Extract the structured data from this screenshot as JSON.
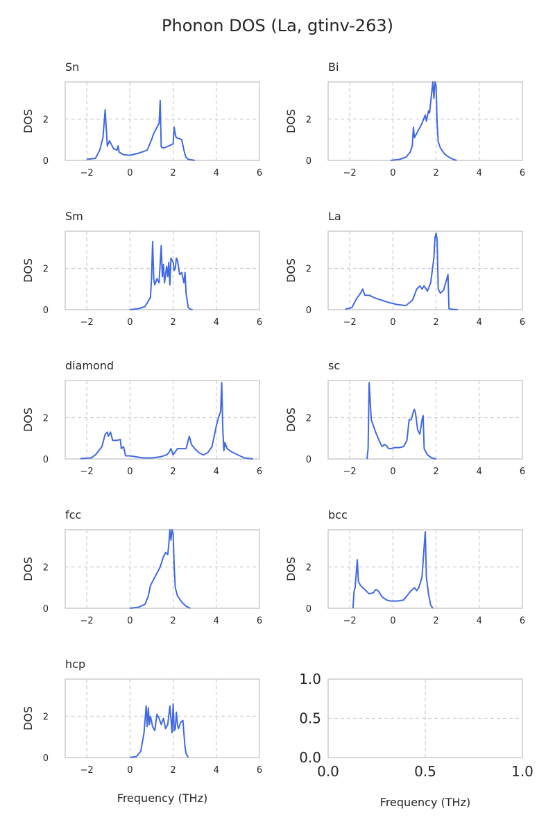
{
  "title": "Phonon DOS (La, gtinv-263)",
  "colors": {
    "line": "#4169e1",
    "grid": "#cccccc",
    "frame": "#cccccc",
    "text": "#262626"
  },
  "chart_data": [
    {
      "type": "line",
      "panel_title": "Sn",
      "xlabel": "",
      "ylabel": "DOS",
      "xlim": [
        -3,
        6
      ],
      "ylim": [
        0,
        3.8
      ],
      "xticks": [
        "-2",
        "0",
        "2",
        "4",
        "6"
      ],
      "yticks": [
        "0",
        "2"
      ],
      "grid": true,
      "series": [
        {
          "x": [
            -2.0,
            -1.6,
            -1.4,
            -1.25,
            -1.15,
            -1.1,
            -1.05,
            -0.95,
            -0.85,
            -0.75,
            -0.6,
            -0.55,
            -0.5,
            -0.3,
            0.0,
            0.2,
            0.4,
            0.6,
            0.8,
            1.0,
            1.1,
            1.25,
            1.35,
            1.4,
            1.45,
            1.55,
            1.8,
            2.0,
            2.05,
            2.1,
            2.15,
            2.3,
            2.4,
            2.5,
            2.55,
            2.6,
            2.7,
            2.9,
            3.0
          ],
          "y": [
            0.05,
            0.1,
            0.5,
            1.1,
            2.45,
            1.6,
            0.7,
            0.95,
            0.75,
            0.55,
            0.5,
            0.7,
            0.4,
            0.28,
            0.25,
            0.3,
            0.35,
            0.42,
            0.5,
            1.0,
            1.3,
            1.6,
            1.8,
            2.9,
            0.65,
            0.6,
            0.7,
            0.8,
            1.6,
            1.25,
            1.1,
            1.05,
            1.0,
            0.5,
            0.3,
            0.15,
            0.05,
            0.02,
            0.0
          ]
        }
      ]
    },
    {
      "type": "line",
      "panel_title": "Bi",
      "xlabel": "",
      "ylabel": "DOS",
      "xlim": [
        -3,
        6
      ],
      "ylim": [
        0,
        3.8
      ],
      "xticks": [
        "-2",
        "0",
        "2",
        "4",
        "6"
      ],
      "yticks": [
        "0",
        "2"
      ],
      "grid": true,
      "series": [
        {
          "x": [
            -0.1,
            0.3,
            0.6,
            0.8,
            0.9,
            0.95,
            1.0,
            1.2,
            1.35,
            1.5,
            1.55,
            1.65,
            1.7,
            1.8,
            1.85,
            1.9,
            1.95,
            2.0,
            2.05,
            2.1,
            2.2,
            2.4,
            2.6,
            2.8,
            2.95
          ],
          "y": [
            0.0,
            0.05,
            0.15,
            0.4,
            0.7,
            1.6,
            1.1,
            1.5,
            1.8,
            2.2,
            1.9,
            2.4,
            2.3,
            3.3,
            3.8,
            3.0,
            3.8,
            3.6,
            1.8,
            0.9,
            0.6,
            0.3,
            0.15,
            0.05,
            0.0
          ]
        }
      ]
    },
    {
      "type": "line",
      "panel_title": "Sm",
      "xlabel": "",
      "ylabel": "DOS",
      "xlim": [
        -3,
        6
      ],
      "ylim": [
        0,
        3.8
      ],
      "xticks": [
        "-2",
        "0",
        "2",
        "4",
        "6"
      ],
      "yticks": [
        "0",
        "2"
      ],
      "grid": true,
      "series": [
        {
          "x": [
            0.0,
            0.4,
            0.7,
            0.95,
            1.0,
            1.05,
            1.1,
            1.15,
            1.25,
            1.35,
            1.45,
            1.5,
            1.55,
            1.6,
            1.7,
            1.75,
            1.8,
            1.85,
            1.9,
            2.0,
            2.05,
            2.1,
            2.15,
            2.2,
            2.3,
            2.4,
            2.5,
            2.55,
            2.6,
            2.7,
            2.8,
            2.9
          ],
          "y": [
            0.0,
            0.05,
            0.15,
            0.6,
            1.5,
            3.3,
            1.5,
            1.2,
            1.5,
            1.3,
            3.1,
            1.6,
            2.2,
            1.3,
            2.1,
            1.6,
            2.3,
            1.2,
            2.5,
            2.3,
            1.9,
            2.0,
            2.5,
            2.4,
            1.7,
            1.8,
            1.3,
            1.8,
            0.8,
            0.1,
            0.02,
            0.0
          ]
        }
      ]
    },
    {
      "type": "line",
      "panel_title": "La",
      "xlabel": "",
      "ylabel": "DOS",
      "xlim": [
        -3,
        6
      ],
      "ylim": [
        0,
        3.8
      ],
      "xticks": [
        "-2",
        "0",
        "2",
        "4",
        "6"
      ],
      "yticks": [
        "0",
        "2"
      ],
      "grid": true,
      "series": [
        {
          "x": [
            -2.2,
            -1.9,
            -1.7,
            -1.5,
            -1.4,
            -1.3,
            -1.1,
            -0.8,
            -0.5,
            -0.2,
            0.2,
            0.6,
            0.9,
            1.0,
            1.1,
            1.25,
            1.35,
            1.45,
            1.6,
            1.75,
            1.9,
            1.95,
            2.0,
            2.05,
            2.1,
            2.2,
            2.35,
            2.5,
            2.55,
            2.6,
            2.7,
            3.0
          ],
          "y": [
            0.02,
            0.1,
            0.5,
            0.8,
            1.0,
            0.7,
            0.7,
            0.55,
            0.45,
            0.35,
            0.25,
            0.2,
            0.45,
            0.7,
            1.0,
            1.15,
            1.0,
            1.15,
            0.9,
            1.3,
            2.5,
            3.5,
            3.7,
            3.4,
            1.0,
            0.8,
            0.95,
            1.5,
            1.7,
            0.05,
            0.02,
            0.0
          ]
        }
      ]
    },
    {
      "type": "line",
      "panel_title": "diamond",
      "xlabel": "",
      "ylabel": "DOS",
      "xlim": [
        -3,
        6
      ],
      "ylim": [
        0,
        3.8
      ],
      "xticks": [
        "-2",
        "0",
        "2",
        "4",
        "6"
      ],
      "yticks": [
        "0",
        "2"
      ],
      "grid": true,
      "series": [
        {
          "x": [
            -2.3,
            -1.8,
            -1.6,
            -1.3,
            -1.15,
            -1.05,
            -1.0,
            -0.9,
            -0.8,
            -0.6,
            -0.45,
            -0.4,
            -0.3,
            -0.2,
            0.0,
            0.3,
            0.6,
            1.0,
            1.4,
            1.7,
            1.8,
            1.9,
            2.0,
            2.2,
            2.6,
            2.75,
            2.85,
            3.0,
            3.2,
            3.4,
            3.6,
            3.8,
            4.0,
            4.1,
            4.2,
            4.25,
            4.3,
            4.35,
            4.4,
            4.5,
            4.7,
            5.0,
            5.3,
            5.7
          ],
          "y": [
            0.02,
            0.05,
            0.2,
            0.6,
            1.2,
            1.3,
            1.1,
            1.3,
            0.9,
            0.9,
            0.95,
            0.5,
            0.6,
            0.15,
            0.15,
            0.1,
            0.05,
            0.05,
            0.1,
            0.2,
            0.3,
            0.5,
            0.2,
            0.5,
            0.5,
            1.1,
            0.7,
            0.5,
            0.3,
            0.2,
            0.3,
            0.6,
            1.6,
            2.0,
            2.3,
            3.7,
            1.5,
            0.4,
            0.8,
            0.5,
            0.35,
            0.2,
            0.05,
            0.0
          ]
        }
      ]
    },
    {
      "type": "line",
      "panel_title": "sc",
      "xlabel": "",
      "ylabel": "DOS",
      "xlim": [
        -3,
        6
      ],
      "ylim": [
        0,
        3.8
      ],
      "xticks": [
        "-2",
        "0",
        "2",
        "4",
        "6"
      ],
      "yticks": [
        "0",
        "2"
      ],
      "grid": true,
      "series": [
        {
          "x": [
            -1.2,
            -1.15,
            -1.1,
            -1.0,
            -0.8,
            -0.6,
            -0.5,
            -0.4,
            -0.3,
            -0.2,
            -0.1,
            0.1,
            0.3,
            0.5,
            0.65,
            0.75,
            0.85,
            0.95,
            1.0,
            1.05,
            1.15,
            1.25,
            1.35,
            1.4,
            1.45,
            1.6,
            1.8,
            2.0
          ],
          "y": [
            0.0,
            0.5,
            3.7,
            1.9,
            1.3,
            0.8,
            0.6,
            0.7,
            0.65,
            0.5,
            0.5,
            0.55,
            0.55,
            0.6,
            0.9,
            1.9,
            1.9,
            2.3,
            2.4,
            2.2,
            1.4,
            1.2,
            1.9,
            2.1,
            0.5,
            0.2,
            0.05,
            0.0
          ]
        }
      ]
    },
    {
      "type": "line",
      "panel_title": "fcc",
      "xlabel": "",
      "ylabel": "DOS",
      "xlim": [
        -3,
        6
      ],
      "ylim": [
        0,
        3.8
      ],
      "xticks": [
        "-2",
        "0",
        "2",
        "4",
        "6"
      ],
      "yticks": [
        "0",
        "2"
      ],
      "grid": true,
      "series": [
        {
          "x": [
            0.0,
            0.4,
            0.7,
            0.85,
            0.95,
            1.05,
            1.2,
            1.4,
            1.55,
            1.65,
            1.75,
            1.8,
            1.85,
            1.9,
            1.95,
            2.0,
            2.05,
            2.1,
            2.2,
            2.4,
            2.6,
            2.8
          ],
          "y": [
            0.0,
            0.05,
            0.2,
            0.6,
            1.1,
            1.3,
            1.6,
            2.0,
            2.5,
            2.7,
            2.6,
            3.1,
            3.8,
            3.3,
            3.8,
            3.6,
            2.0,
            1.0,
            0.6,
            0.3,
            0.1,
            0.0
          ]
        }
      ]
    },
    {
      "type": "line",
      "panel_title": "bcc",
      "xlabel": "",
      "ylabel": "DOS",
      "xlim": [
        -3,
        6
      ],
      "ylim": [
        0,
        3.8
      ],
      "xticks": [
        "-2",
        "0",
        "2",
        "4",
        "6"
      ],
      "yticks": [
        "0",
        "2"
      ],
      "grid": true,
      "series": [
        {
          "x": [
            -1.85,
            -1.8,
            -1.75,
            -1.65,
            -1.6,
            -1.5,
            -1.3,
            -1.1,
            -0.9,
            -0.8,
            -0.75,
            -0.65,
            -0.5,
            -0.3,
            -0.1,
            0.2,
            0.5,
            0.8,
            1.0,
            1.1,
            1.2,
            1.35,
            1.45,
            1.5,
            1.55,
            1.65,
            1.75,
            1.85
          ],
          "y": [
            0.0,
            0.8,
            1.0,
            2.35,
            1.3,
            1.1,
            0.9,
            0.7,
            0.75,
            0.9,
            0.9,
            0.8,
            0.55,
            0.4,
            0.35,
            0.35,
            0.4,
            0.8,
            1.0,
            0.85,
            1.0,
            1.5,
            3.0,
            3.7,
            1.5,
            0.7,
            0.15,
            0.0
          ]
        }
      ]
    },
    {
      "type": "line",
      "panel_title": "hcp",
      "xlabel": "Frequency (THz)",
      "ylabel": "DOS",
      "xlim": [
        -3,
        6
      ],
      "ylim": [
        0,
        3.8
      ],
      "xticks": [
        "-2",
        "0",
        "2",
        "4",
        "6"
      ],
      "yticks": [
        "0",
        "2"
      ],
      "grid": true,
      "series": [
        {
          "x": [
            0.0,
            0.3,
            0.5,
            0.65,
            0.75,
            0.8,
            0.85,
            0.9,
            0.95,
            1.05,
            1.15,
            1.25,
            1.35,
            1.45,
            1.55,
            1.65,
            1.75,
            1.85,
            1.95,
            2.0,
            2.05,
            2.1,
            2.15,
            2.2,
            2.25,
            2.35,
            2.45,
            2.55,
            2.6,
            2.7
          ],
          "y": [
            0.0,
            0.05,
            0.3,
            1.2,
            2.5,
            1.5,
            2.4,
            1.6,
            2.0,
            1.5,
            1.3,
            2.1,
            1.9,
            1.6,
            1.9,
            1.4,
            1.6,
            2.5,
            1.2,
            2.6,
            1.3,
            1.4,
            2.2,
            1.6,
            1.4,
            1.7,
            1.8,
            0.5,
            0.2,
            0.0
          ]
        }
      ]
    },
    {
      "type": "line",
      "panel_title": "",
      "xlabel": "Frequency (THz)",
      "ylabel": "",
      "xlim": [
        0,
        1
      ],
      "ylim": [
        0,
        1
      ],
      "xticks": [
        "0.0",
        "0.5",
        "1.0"
      ],
      "yticks": [
        "0.0",
        "0.5",
        "1.0"
      ],
      "grid": true,
      "series": []
    }
  ]
}
